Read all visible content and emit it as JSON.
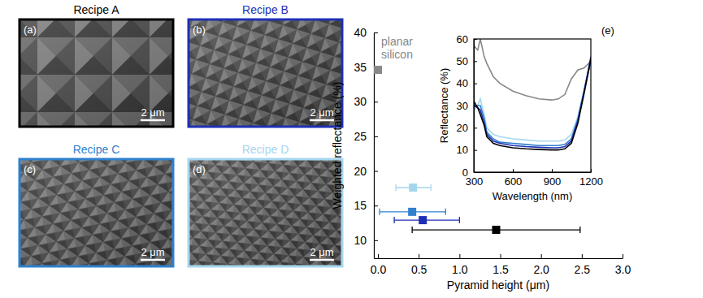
{
  "panels": [
    {
      "title": "Recipe A",
      "label": "(a)",
      "scale_bar": "2 μm",
      "color": "#000000"
    },
    {
      "title": "Recipe B",
      "label": "(b)",
      "scale_bar": "2 μm",
      "color": "#1f2fb5"
    },
    {
      "title": "Recipe C",
      "label": "(c)",
      "scale_bar": "2 μm",
      "color": "#2f80cf"
    },
    {
      "title": "Recipe D",
      "label": "(d)",
      "scale_bar": "2 μm",
      "color": "#a6d6ee"
    }
  ],
  "chart_data": [
    {
      "type": "scatter",
      "x_label": "Pyramid height (μm)",
      "y_label": "Weighted reflectance (%)",
      "annotations": [
        "planar silicon"
      ],
      "x": [
        0,
        1.45,
        0.55,
        0.42,
        0.43
      ],
      "y": [
        34.6,
        11.5,
        12.9,
        14.1,
        17.6
      ],
      "x_error_minus": [
        null,
        1.03,
        0.35,
        0.4,
        0.21
      ],
      "x_error_plus": [
        null,
        1.03,
        0.45,
        0.41,
        0.22
      ],
      "colors": [
        "#888888",
        "#000000",
        "#1f2fb5",
        "#2f80cf",
        "#a6d6ee"
      ],
      "marker": "square",
      "xlim": [
        -0.05,
        3
      ],
      "xticks": [
        {
          "value": 0,
          "label": "0.0"
        },
        0.5,
        {
          "value": 1,
          "label": "1.0"
        },
        1.5,
        {
          "value": 2,
          "label": "2.0"
        },
        2.5,
        {
          "value": 3,
          "label": "3.0"
        }
      ],
      "ylim": [
        7.4,
        40
      ],
      "yticks": [
        10,
        15,
        20,
        25,
        30,
        35,
        40
      ]
    },
    {
      "type": "line",
      "annotations": [
        "(e)"
      ],
      "x_label": "Wavelength (nm)",
      "y_label": "Reflectance (%)",
      "x": [
        300,
        330,
        350,
        380,
        400,
        450,
        500,
        600,
        700,
        800,
        900,
        950,
        1000,
        1050,
        1100,
        1150,
        1200
      ],
      "series": [
        {
          "color": "#888888",
          "values": [
            57,
            55,
            60,
            52,
            49,
            43,
            40,
            36.5,
            34.5,
            33,
            32.5,
            33,
            35,
            42,
            46,
            47,
            50
          ]
        },
        {
          "color": "#a6d6ee",
          "values": [
            28,
            30,
            33,
            26,
            20,
            17,
            16,
            15,
            14.5,
            14,
            14,
            14,
            14.5,
            17,
            25,
            38,
            50
          ]
        },
        {
          "color": "#2f80cf",
          "values": [
            30,
            30,
            30,
            24,
            18,
            15,
            13.5,
            13,
            12.5,
            12,
            12,
            12,
            12.5,
            15,
            24,
            37,
            50
          ]
        },
        {
          "color": "#1f2fb5",
          "values": [
            30,
            29,
            28,
            22,
            17,
            14,
            13,
            12,
            11.5,
            11.2,
            11,
            11,
            11.5,
            14,
            23,
            37,
            52
          ]
        },
        {
          "color": "#000000",
          "values": [
            32,
            29,
            26,
            21,
            16,
            13,
            12,
            11,
            10.5,
            10.2,
            10,
            10,
            10.5,
            13,
            22,
            36,
            51
          ]
        }
      ],
      "xlim": [
        300,
        1200
      ],
      "xticks": [
        300,
        600,
        900,
        1200
      ],
      "ylim": [
        0,
        60
      ],
      "yticks": [
        0,
        10,
        20,
        30,
        40,
        50,
        60
      ]
    }
  ]
}
